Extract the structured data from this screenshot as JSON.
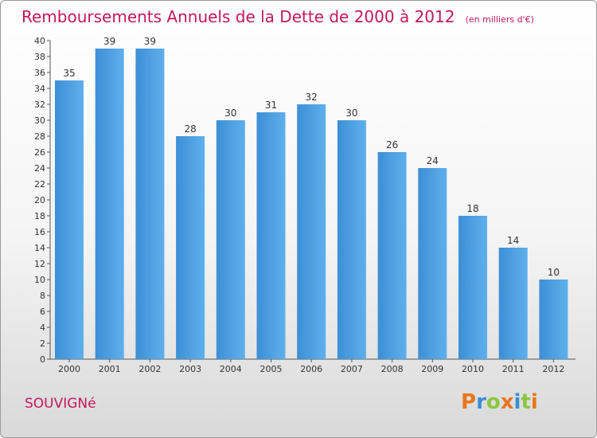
{
  "header": {
    "title": "Remboursements Annuels de la Dette de 2000 à 2012",
    "unit": "(en milliers d'€)"
  },
  "commune": "SOUVIGNé",
  "logo": {
    "letters": [
      "P",
      "r",
      "o",
      "x",
      "i",
      "t",
      "i"
    ],
    "colors": [
      "#e9761c",
      "#3a8fd0",
      "#8cc63f",
      "#e9761c",
      "#3a8fd0",
      "#8cc63f",
      "#e9761c"
    ]
  },
  "colors": {
    "bar": "#3d8fd6",
    "bar_light": "#5eb0ec",
    "title": "#c2185b"
  },
  "chart_data": {
    "type": "bar",
    "title": "Remboursements Annuels de la Dette de 2000 à 2012",
    "xlabel": "",
    "ylabel": "",
    "categories": [
      "2000",
      "2001",
      "2002",
      "2003",
      "2004",
      "2005",
      "2006",
      "2007",
      "2008",
      "2009",
      "2010",
      "2011",
      "2012"
    ],
    "values": [
      35,
      39,
      39,
      28,
      30,
      31,
      32,
      30,
      26,
      24,
      18,
      14,
      10
    ],
    "ylim": [
      0,
      40
    ],
    "yticks": [
      0,
      2,
      4,
      6,
      8,
      10,
      12,
      14,
      16,
      18,
      20,
      22,
      24,
      26,
      28,
      30,
      32,
      34,
      36,
      38,
      40
    ],
    "grid": false,
    "legend": "none"
  }
}
